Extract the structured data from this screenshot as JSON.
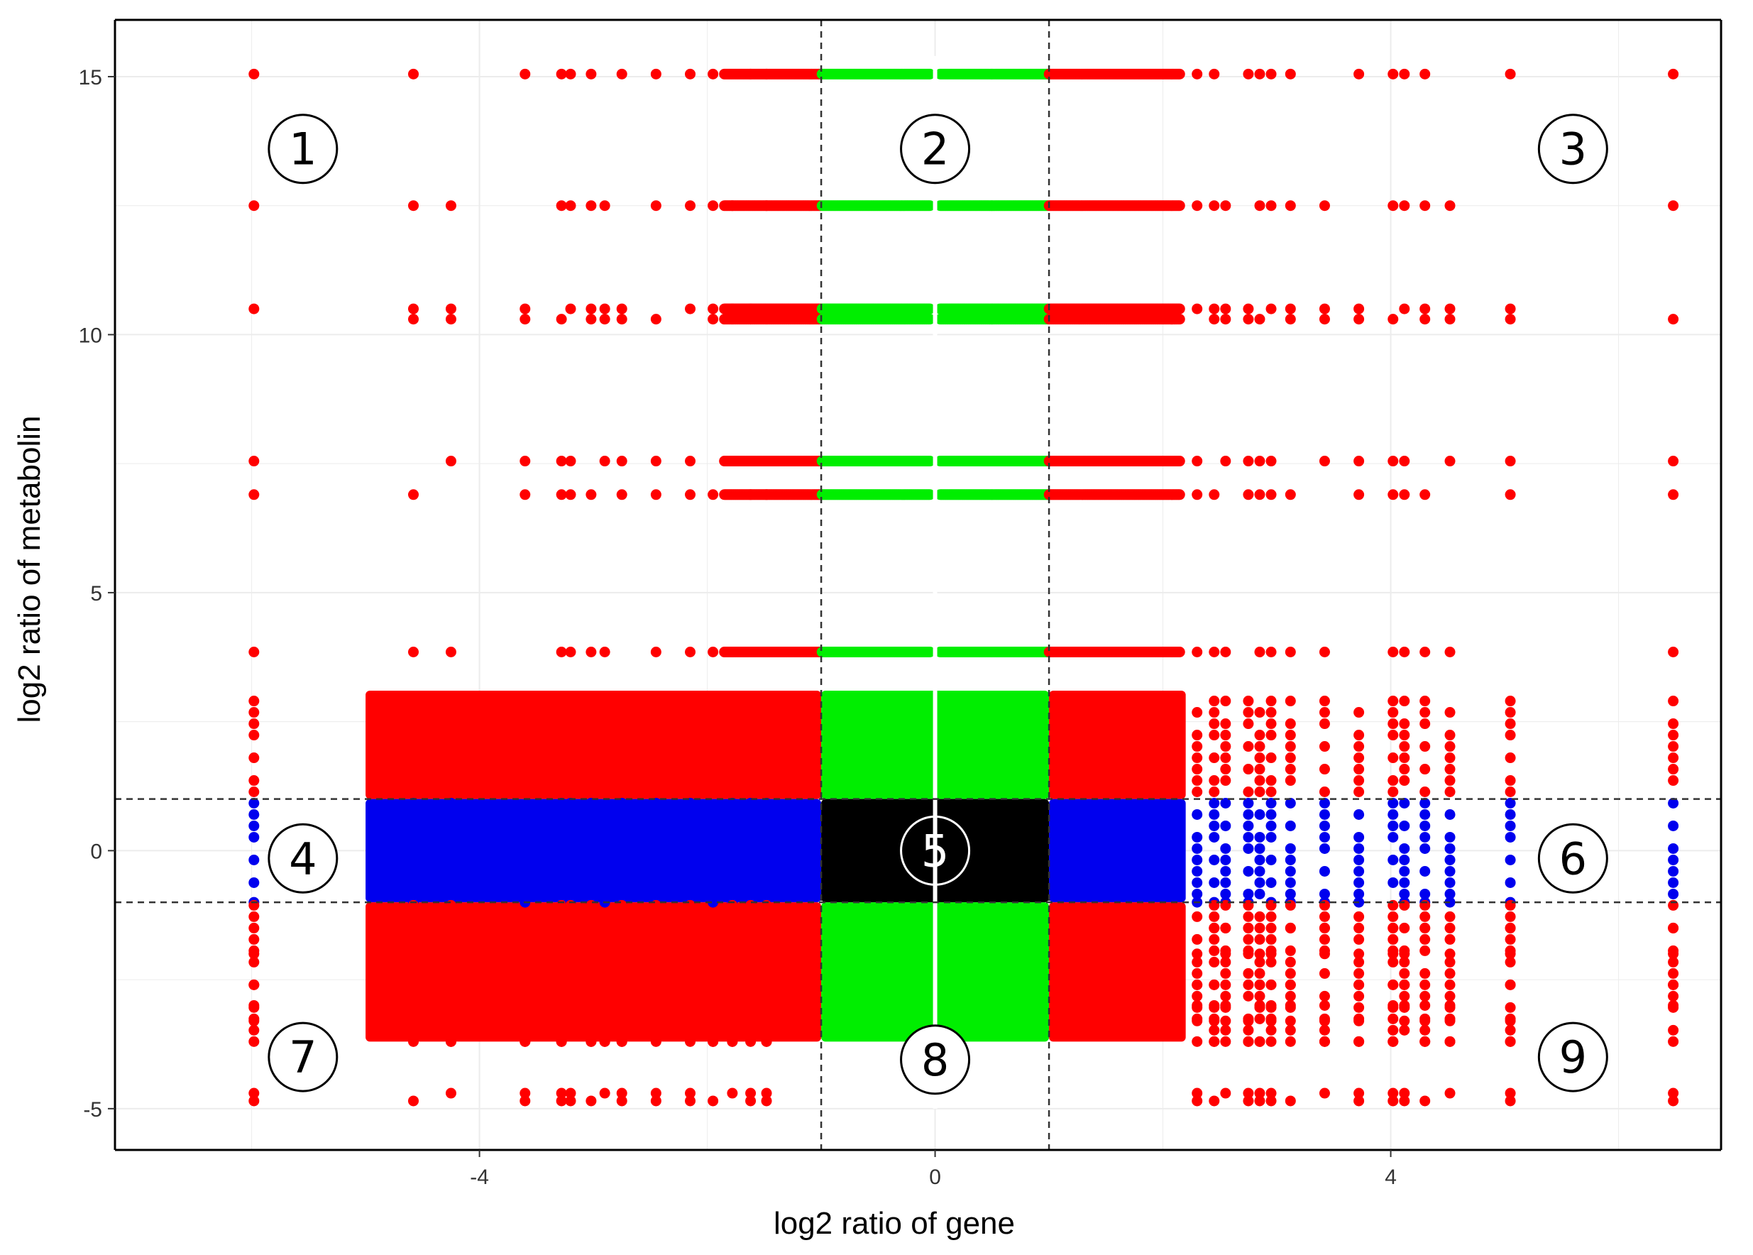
{
  "chart_data": {
    "type": "scatter",
    "title": "",
    "xlabel": "log2 ratio of gene",
    "ylabel": "log2 ratio of metabolin",
    "xlim": [
      -7.2,
      6.9
    ],
    "ylim": [
      -5.8,
      16.1
    ],
    "x_ticks": [
      -4,
      0,
      4
    ],
    "x_tick_labels": [
      "-4",
      "0",
      "4"
    ],
    "y_ticks": [
      -5,
      0,
      5,
      10,
      15
    ],
    "y_tick_labels": [
      "-5",
      "0",
      "5",
      "10",
      "15"
    ],
    "grid": true,
    "legend": "none",
    "thresholds": {
      "gene": [
        -1,
        1
      ],
      "metabolite": [
        -1,
        1
      ]
    },
    "colors": {
      "red": "#ff0000",
      "green": "#00ee00",
      "blue": "#0000ee",
      "black": "#000000",
      "background": "#ffffff",
      "grid": "#ececec",
      "threshold_line": "#333333"
    },
    "metabolite_levels_high": [
      15.05,
      12.5,
      10.5,
      10.3,
      7.55,
      6.9,
      3.85
    ],
    "metabolite_levels_low": [
      -1.0,
      -1.5,
      -2.0,
      -2.6,
      -3.0,
      -3.3,
      -3.7,
      -4.7,
      -4.85
    ],
    "bands": [
      {
        "series": "red",
        "x": [
          -5.0,
          -1.0
        ],
        "y": [
          1.0,
          3.1
        ]
      },
      {
        "series": "green",
        "x": [
          -1.0,
          1.0
        ],
        "y": [
          1.0,
          3.1
        ]
      },
      {
        "series": "red",
        "x": [
          1.0,
          2.2
        ],
        "y": [
          1.0,
          3.1
        ]
      },
      {
        "series": "blue",
        "x": [
          -5.0,
          -1.0
        ],
        "y": [
          -1.0,
          1.0
        ]
      },
      {
        "series": "black",
        "x": [
          -1.0,
          1.0
        ],
        "y": [
          -1.0,
          1.0
        ]
      },
      {
        "series": "blue",
        "x": [
          1.0,
          2.2
        ],
        "y": [
          -1.0,
          1.0
        ]
      },
      {
        "series": "red",
        "x": [
          -5.0,
          -1.0
        ],
        "y": [
          -3.7,
          -1.0
        ]
      },
      {
        "series": "green",
        "x": [
          -1.0,
          1.0
        ],
        "y": [
          -3.7,
          -1.0
        ]
      },
      {
        "series": "red",
        "x": [
          1.0,
          2.2
        ],
        "y": [
          -3.7,
          -1.0
        ]
      }
    ],
    "gene_columns": [
      -5.98,
      -4.58,
      -4.25,
      -3.6,
      -3.28,
      -3.2,
      -3.02,
      -2.9,
      -2.75,
      -2.45,
      -2.15,
      -1.95,
      -1.78,
      -1.62,
      -1.48,
      2.3,
      2.45,
      2.55,
      2.75,
      2.85,
      2.95,
      3.12,
      3.42,
      3.72,
      4.02,
      4.12,
      4.3,
      4.52,
      5.05,
      6.48
    ],
    "region_labels": [
      "1",
      "2",
      "3",
      "4",
      "5",
      "6",
      "7",
      "8",
      "9"
    ],
    "region_centers": [
      {
        "label": "1",
        "x": -5.55,
        "y": 13.6
      },
      {
        "label": "2",
        "x": 0.0,
        "y": 13.6
      },
      {
        "label": "3",
        "x": 5.6,
        "y": 13.6
      },
      {
        "label": "4",
        "x": -5.55,
        "y": -0.15
      },
      {
        "label": "5",
        "x": 0.0,
        "y": 0.0
      },
      {
        "label": "6",
        "x": 5.6,
        "y": -0.15
      },
      {
        "label": "7",
        "x": -5.55,
        "y": -4.0
      },
      {
        "label": "8",
        "x": 0.0,
        "y": -4.05
      },
      {
        "label": "9",
        "x": 5.6,
        "y": -4.0
      }
    ]
  }
}
